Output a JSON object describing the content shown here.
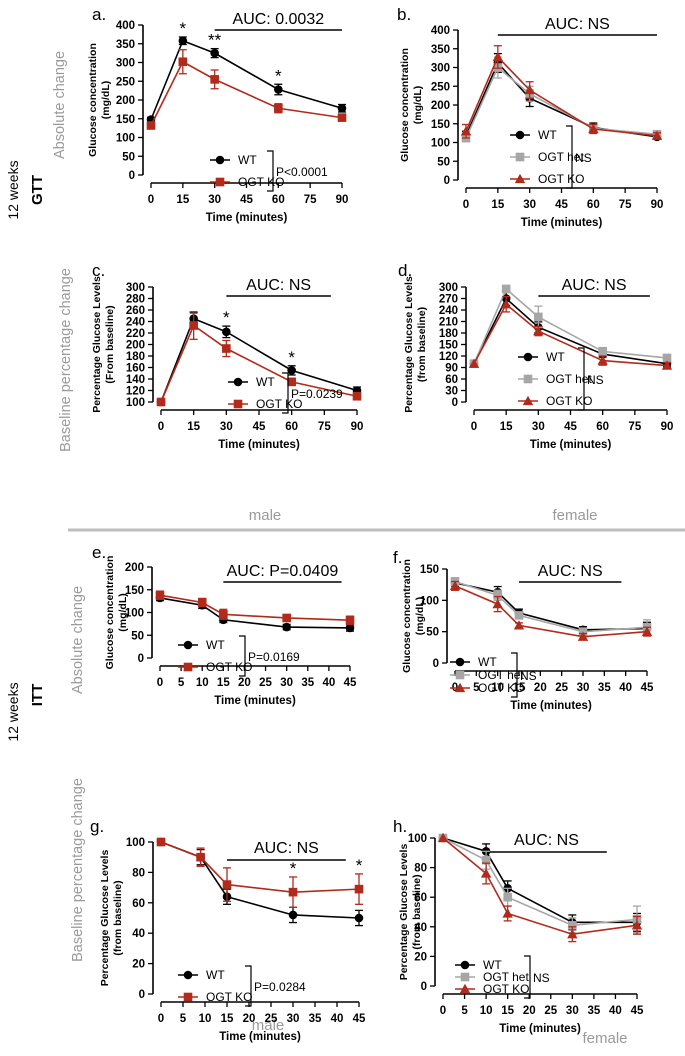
{
  "colors": {
    "wt": "#000000",
    "het": "#a6a6a6",
    "ko": "#b22a1b",
    "divider": "#bdbdbd",
    "side_label": "#9a9a9a"
  },
  "labels": {
    "twelve_weeks": "12 weeks",
    "gtt": "GTT",
    "itt": "ITT",
    "absolute_change": "Absolute change",
    "baseline_change": "Baseline percentage change",
    "male": "male",
    "female": "female"
  },
  "chart_data": [
    {
      "id": "a",
      "type": "line",
      "panel_label": "a.",
      "ylabel_lines": [
        "Glucose concentration",
        "(mg/dL)"
      ],
      "xlabel": "Time (minutes)",
      "x": [
        0,
        15,
        30,
        60,
        90
      ],
      "xticks": [
        0,
        15,
        30,
        45,
        60,
        75,
        90
      ],
      "xlim": [
        0,
        90
      ],
      "ylim": [
        0,
        400
      ],
      "yticks": [
        0,
        50,
        100,
        150,
        200,
        250,
        300,
        350,
        400
      ],
      "series": [
        {
          "name": "WT",
          "key": "wt",
          "marker": "circle",
          "values": [
            148,
            358,
            325,
            228,
            178
          ],
          "errors": [
            6,
            10,
            12,
            14,
            10
          ]
        },
        {
          "name": "OGT KO",
          "key": "ko",
          "marker": "square",
          "values": [
            132,
            302,
            255,
            178,
            153
          ],
          "errors": [
            8,
            32,
            25,
            12,
            8
          ]
        }
      ],
      "auc_text": "AUC: 0.0032",
      "auc_range": [
        30,
        90
      ],
      "stats_text": "P<0.0001",
      "significance": [
        {
          "x": 15,
          "text": "*"
        },
        {
          "x": 30,
          "text": "**"
        },
        {
          "x": 60,
          "text": "*"
        }
      ]
    },
    {
      "id": "b",
      "type": "line",
      "panel_label": "b.",
      "ylabel_lines": [
        "Glucose concentration",
        "(mg/dL)"
      ],
      "xlabel": "Time (minutes)",
      "x": [
        0,
        15,
        30,
        60,
        90
      ],
      "xticks": [
        0,
        15,
        30,
        45,
        60,
        75,
        90
      ],
      "xlim": [
        0,
        90
      ],
      "ylim": [
        0,
        400
      ],
      "yticks": [
        0,
        50,
        100,
        150,
        200,
        250,
        300,
        350,
        400
      ],
      "series": [
        {
          "name": "WT",
          "key": "wt",
          "marker": "circle",
          "values": [
            118,
            312,
            218,
            140,
            115
          ],
          "errors": [
            12,
            25,
            22,
            12,
            6
          ]
        },
        {
          "name": "OGT het",
          "key": "het",
          "marker": "square",
          "values": [
            112,
            300,
            230,
            138,
            122
          ],
          "errors": [
            10,
            28,
            20,
            10,
            8
          ]
        },
        {
          "name": "OGT KO",
          "key": "ko",
          "marker": "triangle",
          "values": [
            130,
            328,
            240,
            136,
            118
          ],
          "errors": [
            18,
            30,
            22,
            12,
            8
          ]
        }
      ],
      "auc_text": "AUC: NS",
      "auc_range": [
        15,
        90
      ],
      "stats_text": "NS",
      "significance": []
    },
    {
      "id": "c",
      "type": "line",
      "panel_label": "c.",
      "ylabel_lines": [
        "Percentage Glucose Levels",
        "(From baseline)"
      ],
      "xlabel": "Time (minutes)",
      "x": [
        0,
        15,
        30,
        60,
        90
      ],
      "xticks": [
        0,
        15,
        30,
        45,
        60,
        75,
        90
      ],
      "xlim": [
        0,
        90
      ],
      "ylim": [
        100,
        300
      ],
      "yticks": [
        100,
        120,
        140,
        160,
        180,
        200,
        220,
        240,
        260,
        280,
        300
      ],
      "series": [
        {
          "name": "WT",
          "key": "wt",
          "marker": "circle",
          "values": [
            100,
            245,
            222,
            155,
            120
          ],
          "errors": [
            0,
            10,
            10,
            8,
            6
          ]
        },
        {
          "name": "OGT KO",
          "key": "ko",
          "marker": "square",
          "values": [
            100,
            233,
            193,
            135,
            110
          ],
          "errors": [
            0,
            24,
            14,
            6,
            4
          ]
        }
      ],
      "auc_text": "AUC: NS",
      "auc_range": [
        30,
        78
      ],
      "stats_text": "P=0.0239",
      "significance": [
        {
          "x": 30,
          "text": "*"
        },
        {
          "x": 60,
          "text": "*"
        }
      ]
    },
    {
      "id": "d",
      "type": "line",
      "panel_label": "d.",
      "ylabel_lines": [
        "Percentage Glucose Levels",
        "(from baseline)"
      ],
      "xlabel": "Time (minutes)",
      "x": [
        0,
        15,
        30,
        60,
        90
      ],
      "xticks": [
        0,
        15,
        30,
        45,
        60,
        75,
        90
      ],
      "xlim": [
        0,
        90
      ],
      "ylim": [
        0,
        300
      ],
      "yticks": [
        0,
        30,
        60,
        90,
        120,
        150,
        180,
        210,
        240,
        270,
        300
      ],
      "series": [
        {
          "name": "WT",
          "key": "wt",
          "marker": "circle",
          "values": [
            100,
            270,
            195,
            125,
            100
          ],
          "errors": [
            0,
            18,
            14,
            8,
            8
          ]
        },
        {
          "name": "OGT het",
          "key": "het",
          "marker": "square",
          "values": [
            100,
            295,
            222,
            132,
            115
          ],
          "errors": [
            0,
            6,
            28,
            10,
            8
          ]
        },
        {
          "name": "OGT KO",
          "key": "ko",
          "marker": "triangle",
          "values": [
            100,
            255,
            185,
            108,
            95
          ],
          "errors": [
            0,
            20,
            12,
            12,
            8
          ]
        }
      ],
      "auc_text": "AUC: NS",
      "auc_range": [
        30,
        82
      ],
      "stats_text": "NS",
      "significance": []
    },
    {
      "id": "e",
      "type": "line",
      "panel_label": "e.",
      "ylabel_lines": [
        "Glucose concentration",
        "(mg/dL)"
      ],
      "xlabel": "Time (minutes)",
      "x": [
        0,
        10,
        15,
        30,
        45
      ],
      "xticks": [
        0,
        5,
        10,
        15,
        20,
        25,
        30,
        35,
        40,
        45
      ],
      "xlim": [
        0,
        45
      ],
      "ylim": [
        0,
        200
      ],
      "yticks": [
        0,
        50,
        100,
        150,
        200
      ],
      "series": [
        {
          "name": "WT",
          "key": "wt",
          "marker": "circle",
          "values": [
            132,
            116,
            84,
            68,
            66
          ],
          "errors": [
            6,
            7,
            6,
            6,
            7
          ]
        },
        {
          "name": "OGT KO",
          "key": "ko",
          "marker": "square",
          "values": [
            138,
            122,
            96,
            88,
            83
          ],
          "errors": [
            9,
            9,
            11,
            7,
            9
          ]
        }
      ],
      "auc_text": "AUC: P=0.0409",
      "auc_range": [
        15,
        43
      ],
      "stats_text": "P=0.0169",
      "significance": []
    },
    {
      "id": "f",
      "type": "line",
      "panel_label": "f.",
      "ylabel_lines": [
        "Glucose concentration",
        "(mg/dL)"
      ],
      "xlabel": "Time (minutes)",
      "x": [
        0,
        10,
        15,
        30,
        45
      ],
      "xticks": [
        0,
        5,
        10,
        15,
        20,
        25,
        30,
        35,
        40,
        45
      ],
      "xlim": [
        0,
        45
      ],
      "ylim": [
        0,
        150
      ],
      "yticks": [
        0,
        50,
        100,
        150
      ],
      "series": [
        {
          "name": "WT",
          "key": "wt",
          "marker": "circle",
          "values": [
            128,
            113,
            80,
            53,
            55
          ],
          "errors": [
            5,
            9,
            6,
            5,
            10
          ]
        },
        {
          "name": "OGT het",
          "key": "het",
          "marker": "square",
          "values": [
            130,
            108,
            76,
            50,
            57
          ],
          "errors": [
            6,
            8,
            5,
            5,
            12
          ]
        },
        {
          "name": "OGT KO",
          "key": "ko",
          "marker": "triangle",
          "values": [
            123,
            94,
            60,
            42,
            50
          ],
          "errors": [
            7,
            12,
            4,
            5,
            7
          ]
        }
      ],
      "auc_text": "AUC: NS",
      "auc_range": [
        15,
        39
      ],
      "stats_text": "NS",
      "significance": []
    },
    {
      "id": "g",
      "type": "line",
      "panel_label": "g.",
      "ylabel_lines": [
        "Percentage Glucose Levels",
        "(from baseline)"
      ],
      "xlabel": "Time (minutes)",
      "x": [
        0,
        9,
        15,
        30,
        45
      ],
      "xticks": [
        0,
        5,
        10,
        15,
        20,
        25,
        30,
        35,
        40,
        45
      ],
      "xlim": [
        0,
        45
      ],
      "ylim": [
        0,
        100
      ],
      "yticks": [
        0,
        20,
        40,
        60,
        80,
        100
      ],
      "series": [
        {
          "name": "WT",
          "key": "wt",
          "marker": "circle",
          "values": [
            100,
            90,
            64,
            52,
            50
          ],
          "errors": [
            0,
            5,
            5,
            5,
            5
          ]
        },
        {
          "name": "OGT KO",
          "key": "ko",
          "marker": "square",
          "values": [
            100,
            90,
            72,
            67,
            69
          ],
          "errors": [
            0,
            6,
            11,
            10,
            10
          ]
        }
      ],
      "auc_text": "AUC: NS",
      "auc_range": [
        15,
        42
      ],
      "stats_text": "P=0.0284",
      "significance": [
        {
          "x": 30,
          "text": "*"
        },
        {
          "x": 45,
          "text": "*"
        }
      ]
    },
    {
      "id": "h",
      "type": "line",
      "panel_label": "h.",
      "ylabel_lines": [
        "Percentage Glucose Levels",
        "(from baseline)"
      ],
      "xlabel": "Time (minutes)",
      "x": [
        0,
        10,
        15,
        30,
        45
      ],
      "xticks": [
        0,
        5,
        10,
        15,
        20,
        25,
        30,
        35,
        40,
        45
      ],
      "xlim": [
        0,
        45
      ],
      "ylim": [
        0,
        100
      ],
      "yticks": [
        0,
        20,
        40,
        60,
        80,
        100
      ],
      "series": [
        {
          "name": "WT",
          "key": "wt",
          "marker": "circle",
          "values": [
            100,
            91,
            66,
            43,
            43
          ],
          "errors": [
            0,
            5,
            5,
            5,
            6
          ]
        },
        {
          "name": "OGT het",
          "key": "het",
          "marker": "square",
          "values": [
            100,
            85,
            60,
            41,
            45
          ],
          "errors": [
            0,
            6,
            6,
            5,
            9
          ]
        },
        {
          "name": "OGT KO",
          "key": "ko",
          "marker": "triangle",
          "values": [
            100,
            76,
            49,
            35,
            41
          ],
          "errors": [
            0,
            7,
            5,
            5,
            6
          ]
        }
      ],
      "auc_text": "AUC: NS",
      "auc_range": [
        10,
        38
      ],
      "stats_text": "NS",
      "significance": []
    }
  ]
}
